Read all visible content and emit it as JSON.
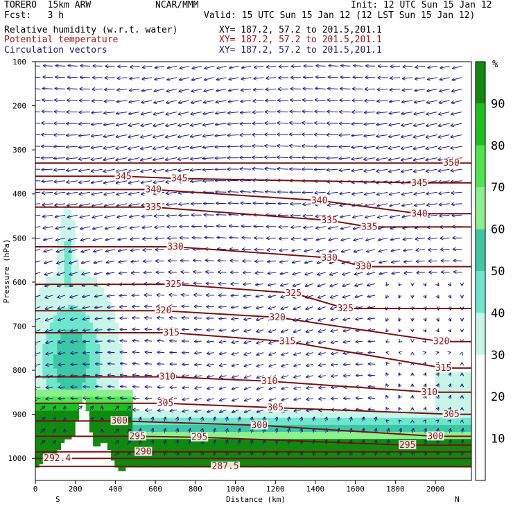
{
  "header": {
    "model": "TORERO  15km ARW",
    "org": "NCAR/MMM",
    "init": "Init: 12 UTC Sun 15 Jan 12",
    "fcst": "Fcst:   3 h",
    "valid": "Valid: 15 UTC Sun 15 Jan 12 (12 LST Sun 15 Jan 12)",
    "fields": [
      {
        "label": "Relative humidity (w.r.t. water)",
        "xy": "XY= 187.2, 57.2 to 201.5,201.1",
        "color": "#000000"
      },
      {
        "label": "Potential temperature",
        "xy": "XY= 187.2, 57.2 to 201.5,201.1",
        "color": "#a01010"
      },
      {
        "label": "Circulation vectors",
        "xy": "XY= 187.2, 57.2 to 201.5,201.1",
        "color": "#1a1a80"
      }
    ]
  },
  "chart_data": {
    "type": "area",
    "ylabel": "Pressure (hPa)",
    "xlabel": "Distance (km)",
    "xlim": [
      0,
      2180
    ],
    "ylim": [
      1050,
      100
    ],
    "x_ticks": [
      0,
      200,
      400,
      600,
      800,
      1000,
      1200,
      1400,
      1600,
      1800,
      2000
    ],
    "y_ticks": [
      100,
      200,
      300,
      400,
      500,
      600,
      700,
      800,
      900,
      1000
    ],
    "end_labels": {
      "left": "S",
      "right": "N"
    },
    "colorbar": {
      "unit": "%",
      "ticks": [
        10,
        20,
        30,
        40,
        50,
        60,
        70,
        80,
        90
      ],
      "bins": [
        {
          "lo": 0,
          "hi": 30,
          "color": "#ffffff"
        },
        {
          "lo": 30,
          "hi": 40,
          "color": "#c8f5e8"
        },
        {
          "lo": 40,
          "hi": 50,
          "color": "#6fe6cc"
        },
        {
          "lo": 50,
          "hi": 60,
          "color": "#3cc8a4"
        },
        {
          "lo": 60,
          "hi": 70,
          "color": "#8cf08c"
        },
        {
          "lo": 70,
          "hi": 80,
          "color": "#4ee64e"
        },
        {
          "lo": 80,
          "hi": 90,
          "color": "#1fbf1f"
        },
        {
          "lo": 90,
          "hi": 100,
          "color": "#0f8a0f"
        }
      ]
    },
    "theta_contours": [
      {
        "value": 287.5,
        "labels": [
          [
            950,
            1018
          ]
        ]
      },
      {
        "value": 290,
        "labels": [
          [
            540,
            985
          ]
        ]
      },
      {
        "value": 292.4,
        "labels": [
          [
            110,
            1000
          ]
        ]
      },
      {
        "value": 295,
        "labels": [
          [
            510,
            950
          ],
          [
            820,
            952
          ],
          [
            1860,
            970
          ]
        ]
      },
      {
        "value": 300,
        "labels": [
          [
            420,
            915
          ],
          [
            1120,
            925
          ],
          [
            2000,
            950
          ]
        ]
      },
      {
        "value": 305,
        "labels": [
          [
            650,
            875
          ],
          [
            1200,
            885
          ],
          [
            2080,
            900
          ]
        ]
      },
      {
        "value": 310,
        "labels": [
          [
            660,
            815
          ],
          [
            1170,
            825
          ],
          [
            1970,
            850
          ]
        ]
      },
      {
        "value": 315,
        "labels": [
          [
            680,
            715
          ],
          [
            1260,
            735
          ],
          [
            2040,
            795
          ]
        ]
      },
      {
        "value": 320,
        "labels": [
          [
            640,
            665
          ],
          [
            1210,
            680
          ],
          [
            2030,
            735
          ]
        ]
      },
      {
        "value": 325,
        "labels": [
          [
            690,
            605
          ],
          [
            1290,
            625
          ],
          [
            1550,
            660
          ]
        ]
      },
      {
        "value": 330,
        "labels": [
          [
            700,
            520
          ],
          [
            1470,
            545
          ],
          [
            1640,
            565
          ]
        ]
      },
      {
        "value": 335,
        "labels": [
          [
            590,
            430
          ],
          [
            1470,
            460
          ],
          [
            1670,
            475
          ]
        ]
      },
      {
        "value": 340,
        "labels": [
          [
            590,
            390
          ],
          [
            1420,
            415
          ],
          [
            1920,
            445
          ]
        ]
      },
      {
        "value": 345,
        "labels": [
          [
            440,
            360
          ],
          [
            720,
            365
          ],
          [
            1920,
            375
          ]
        ]
      },
      {
        "value": 350,
        "labels": [
          [
            2080,
            330
          ]
        ]
      }
    ]
  }
}
